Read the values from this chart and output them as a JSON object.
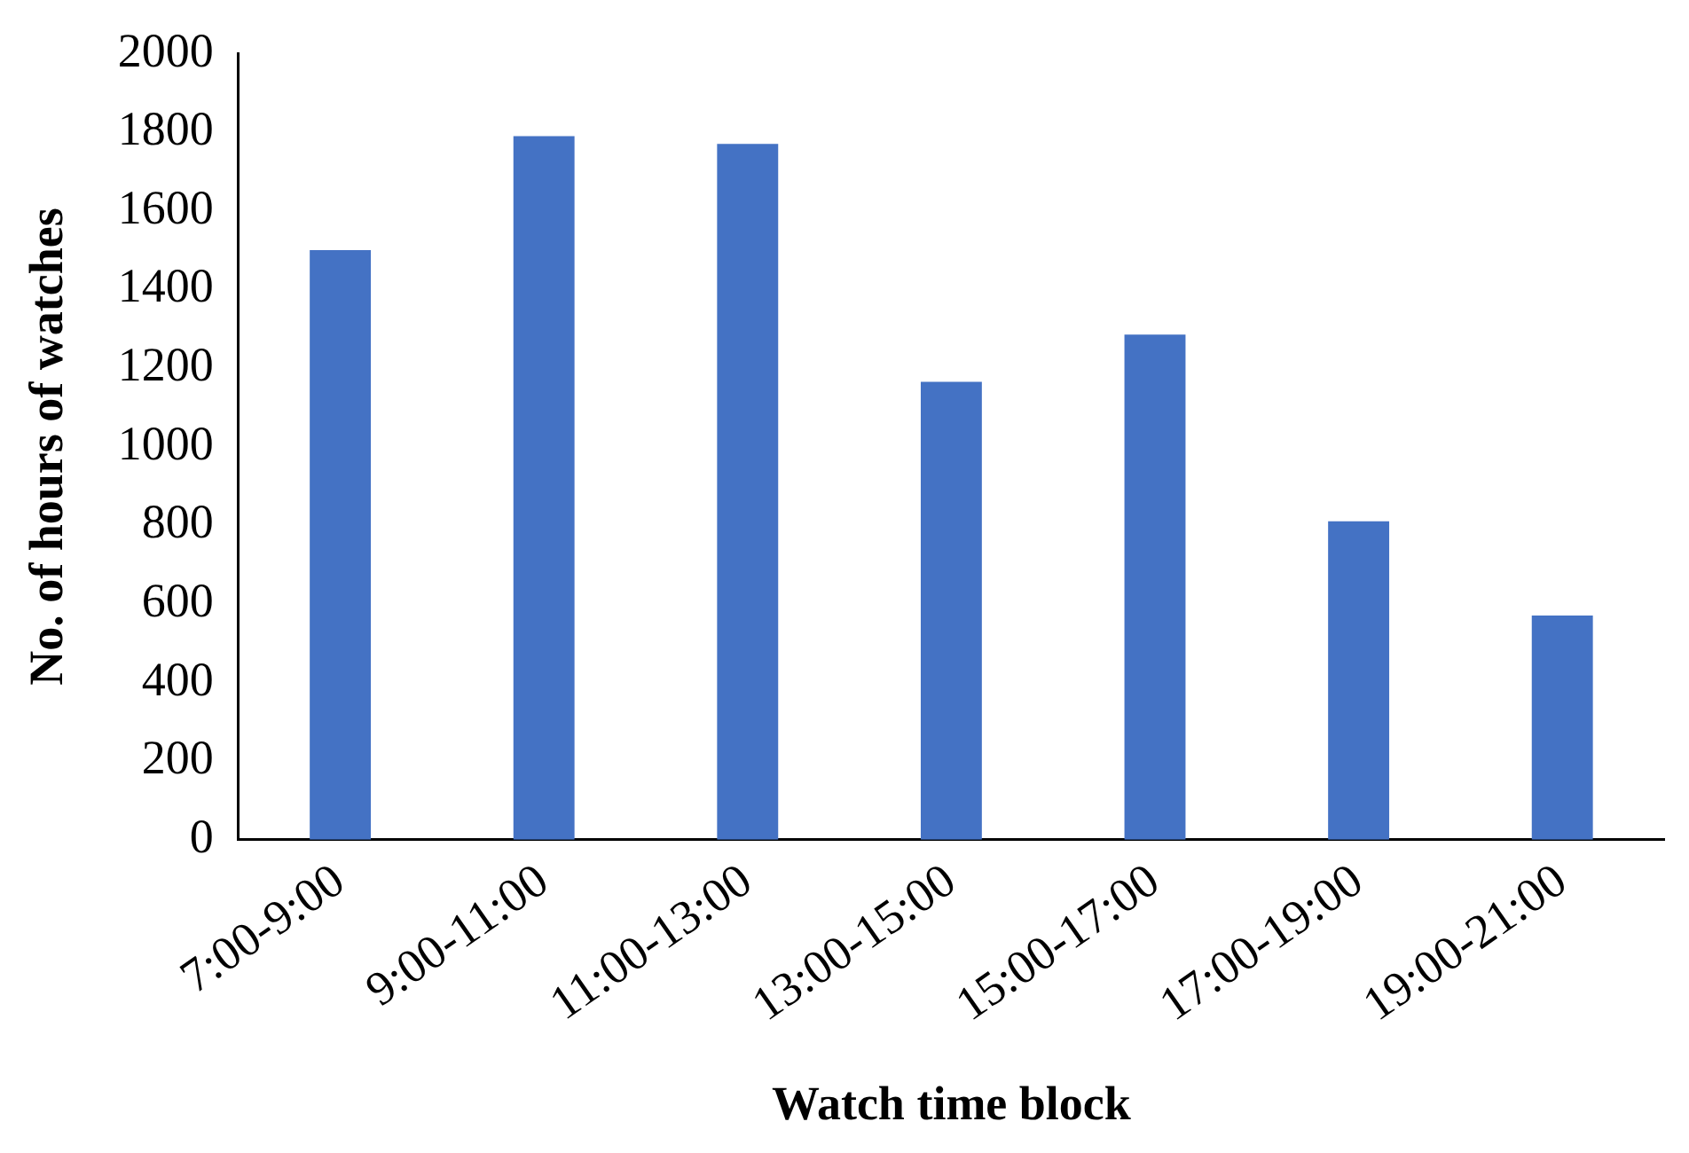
{
  "chart_data": {
    "type": "bar",
    "xlabel": "Watch time block",
    "ylabel": "No. of hours of watches",
    "categories": [
      "7:00-9:00",
      "9:00-11:00",
      "11:00-13:00",
      "13:00-15:00",
      "15:00-17:00",
      "17:00-19:00",
      "19:00-21:00"
    ],
    "values": [
      1500,
      1790,
      1770,
      1165,
      1285,
      810,
      570
    ],
    "color": "#4472c4",
    "ylim": [
      0,
      2000
    ],
    "yticks": [
      0,
      200,
      400,
      600,
      800,
      1000,
      1200,
      1400,
      1600,
      1800,
      2000
    ],
    "grid": false,
    "legend": false
  }
}
